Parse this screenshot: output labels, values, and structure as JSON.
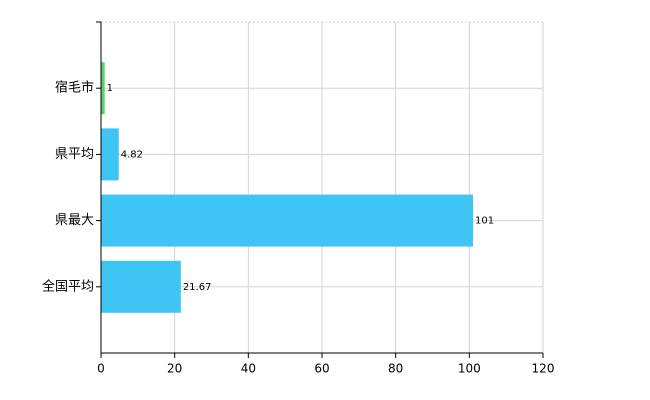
{
  "chart_data": {
    "type": "bar",
    "orientation": "horizontal",
    "categories": [
      "宿毛市",
      "県平均",
      "県最大",
      "全国平均"
    ],
    "values": [
      1,
      4.82,
      101,
      21.67
    ],
    "colors": [
      "#5fcf6d",
      "#3fc5f4",
      "#3fc5f4",
      "#3fc5f4"
    ],
    "xlim": [
      0,
      120
    ],
    "xticks": [
      0,
      20,
      40,
      60,
      80,
      100,
      120
    ],
    "grid": true
  }
}
